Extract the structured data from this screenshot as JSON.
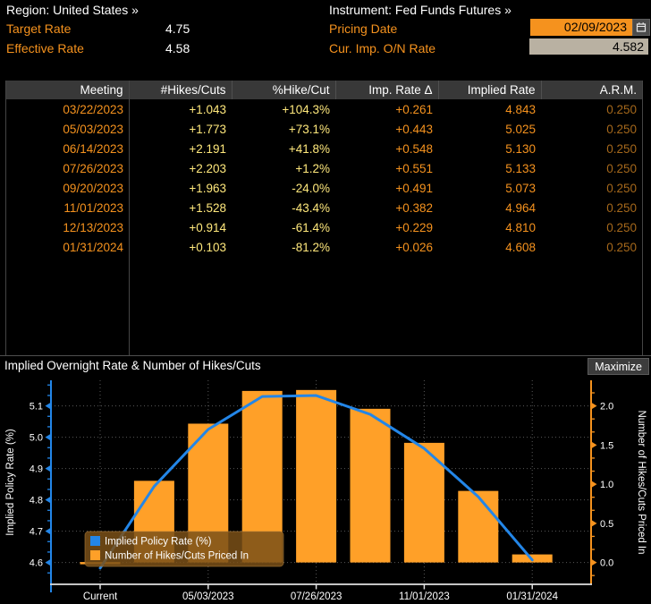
{
  "colors": {
    "accent_orange": "#F5921E",
    "value_yellow": "#FFE87C",
    "dim_orange": "#A5681B",
    "bar_orange": "#FFA028",
    "line_blue": "#2386E8",
    "field_tan": "#B9B1A2",
    "header_gray": "#383838",
    "legend_brown": "#7A5018"
  },
  "header": {
    "region": "Region: United States »",
    "instrument": "Instrument: Fed Funds Futures »",
    "target_rate_label": "Target Rate",
    "target_rate_value": "4.75",
    "effective_rate_label": "Effective Rate",
    "effective_rate_value": "4.58",
    "pricing_date_label": "Pricing Date",
    "pricing_date_value": "02/09/2023",
    "cur_imp_on_rate_label": "Cur. Imp. O/N Rate",
    "cur_imp_on_rate_value": "4.582"
  },
  "table": {
    "columns": [
      "Meeting",
      "#Hikes/Cuts",
      "%Hike/Cut",
      "Imp. Rate Δ",
      "Implied Rate",
      "A.R.M."
    ],
    "rows": [
      [
        "03/22/2023",
        "+1.043",
        "+104.3%",
        "+0.261",
        "4.843",
        "0.250"
      ],
      [
        "05/03/2023",
        "+1.773",
        "+73.1%",
        "+0.443",
        "5.025",
        "0.250"
      ],
      [
        "06/14/2023",
        "+2.191",
        "+41.8%",
        "+0.548",
        "5.130",
        "0.250"
      ],
      [
        "07/26/2023",
        "+2.203",
        "+1.2%",
        "+0.551",
        "5.133",
        "0.250"
      ],
      [
        "09/20/2023",
        "+1.963",
        "-24.0%",
        "+0.491",
        "5.073",
        "0.250"
      ],
      [
        "11/01/2023",
        "+1.528",
        "-43.4%",
        "+0.382",
        "4.964",
        "0.250"
      ],
      [
        "12/13/2023",
        "+0.914",
        "-61.4%",
        "+0.229",
        "4.810",
        "0.250"
      ],
      [
        "01/31/2024",
        "+0.103",
        "-81.2%",
        "+0.026",
        "4.608",
        "0.250"
      ]
    ]
  },
  "chart": {
    "title": "Implied Overnight Rate & Number of Hikes/Cuts",
    "maximize_label": "Maximize"
  },
  "chart_data": {
    "type": "combo",
    "categories": [
      "Current",
      "03/22/2023",
      "05/03/2023",
      "06/14/2023",
      "07/26/2023",
      "09/20/2023",
      "11/01/2023",
      "12/13/2023",
      "01/31/2024"
    ],
    "series": [
      {
        "name": "Implied Policy Rate (%)",
        "type": "line",
        "axis": "left",
        "color": "#2386E8",
        "values": [
          4.582,
          4.843,
          5.025,
          5.13,
          5.133,
          5.073,
          4.964,
          4.81,
          4.608
        ]
      },
      {
        "name": "Number of Hikes/Cuts Priced In",
        "type": "bar",
        "axis": "right",
        "color": "#FFA028",
        "values": [
          0.0,
          1.043,
          1.773,
          2.191,
          2.203,
          1.963,
          1.528,
          0.914,
          0.103
        ]
      }
    ],
    "left_axis": {
      "label": "Implied Policy Rate (%)",
      "ticks": [
        4.6,
        4.7,
        4.8,
        4.9,
        5.0,
        5.1
      ],
      "range": [
        4.53,
        5.18
      ]
    },
    "right_axis": {
      "label": "Number of Hikes/Cuts Priced In",
      "ticks": [
        0.0,
        0.5,
        1.0,
        1.5,
        2.0
      ],
      "range": [
        -0.28,
        2.32
      ]
    },
    "x_tick_labels": [
      "Current",
      "05/03/2023",
      "07/26/2023",
      "11/01/2023",
      "01/31/2024"
    ],
    "grid": true,
    "legend_position": "bottom-left"
  }
}
